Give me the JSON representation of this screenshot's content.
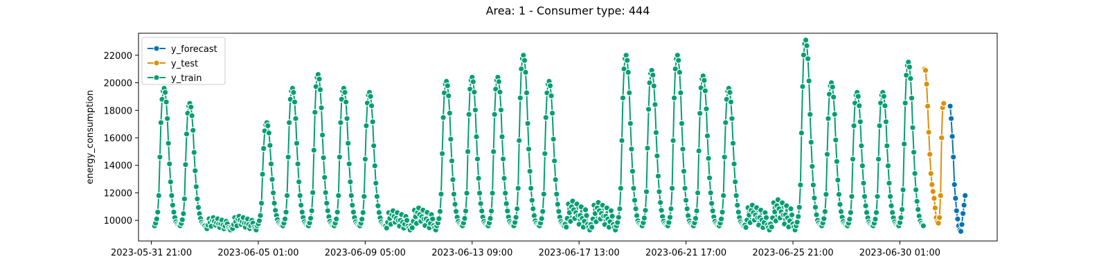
{
  "chart_data": {
    "type": "line",
    "title": "Area: 1 - Consumer type: 444",
    "xlabel": "",
    "ylabel": "energy_consumption",
    "xlim": [
      "2023-05-31 09:00",
      "2023-07-03 20:00"
    ],
    "ylim": [
      8500,
      23600
    ],
    "x_ticks": [
      "2023-05-31 21:00",
      "2023-06-05 01:00",
      "2023-06-09 05:00",
      "2023-06-13 09:00",
      "2023-06-17 13:00",
      "2023-06-21 17:00",
      "2023-06-25 21:00",
      "2023-06-30 01:00"
    ],
    "y_ticks": [
      10000,
      12000,
      14000,
      16000,
      18000,
      20000,
      22000
    ],
    "grid": false,
    "legend_position": "top-left",
    "legend": [
      "y_forecast",
      "y_test",
      "y_train"
    ],
    "series": [
      {
        "name": "y_forecast",
        "color": "#0173b2",
        "marker": "circle",
        "start": "2023-07-02 00:00",
        "step_hours": 1,
        "values": [
          18300,
          17400,
          16100,
          14600,
          12600,
          11600,
          10700,
          10100,
          9600,
          9300,
          9200,
          9700,
          10500,
          11100,
          11800
        ]
      },
      {
        "name": "y_test",
        "color": "#de8f05",
        "marker": "circle",
        "start": "2023-07-01 00:00",
        "step_hours": 1,
        "values": [
          21000,
          20900,
          19900,
          18300,
          16400,
          14800,
          13400,
          12600,
          12100,
          11600,
          10900,
          10200,
          9900,
          9800,
          10200,
          11800,
          16000,
          18200,
          18500
        ]
      },
      {
        "name": "y_train",
        "color": "#029e73",
        "marker": "circle",
        "peaks": [
          {
            "day": "2023-06-01",
            "type": "weekday",
            "peak": 19600
          },
          {
            "day": "2023-06-02",
            "type": "weekday",
            "peak": 18500
          },
          {
            "day": "2023-06-03",
            "type": "weekend",
            "peak": 10200
          },
          {
            "day": "2023-06-04",
            "type": "weekend",
            "peak": 10300
          },
          {
            "day": "2023-06-05",
            "type": "weekday",
            "peak": 17100
          },
          {
            "day": "2023-06-06",
            "type": "weekday",
            "peak": 19600
          },
          {
            "day": "2023-06-07",
            "type": "weekday",
            "peak": 20600
          },
          {
            "day": "2023-06-08",
            "type": "weekday",
            "peak": 19600
          },
          {
            "day": "2023-06-09",
            "type": "weekday",
            "peak": 19300
          },
          {
            "day": "2023-06-10",
            "type": "weekend",
            "peak": 10700
          },
          {
            "day": "2023-06-11",
            "type": "weekend",
            "peak": 10900
          },
          {
            "day": "2023-06-12",
            "type": "weekday",
            "peak": 20100
          },
          {
            "day": "2023-06-13",
            "type": "weekday",
            "peak": 20400
          },
          {
            "day": "2023-06-14",
            "type": "weekday",
            "peak": 20400
          },
          {
            "day": "2023-06-15",
            "type": "weekday",
            "peak": 22000
          },
          {
            "day": "2023-06-16",
            "type": "weekday",
            "peak": 20100
          },
          {
            "day": "2023-06-17",
            "type": "weekend",
            "peak": 11400
          },
          {
            "day": "2023-06-18",
            "type": "weekend",
            "peak": 11300
          },
          {
            "day": "2023-06-19",
            "type": "weekday",
            "peak": 22000
          },
          {
            "day": "2023-06-20",
            "type": "weekday",
            "peak": 20900
          },
          {
            "day": "2023-06-21",
            "type": "weekday",
            "peak": 22000
          },
          {
            "day": "2023-06-22",
            "type": "weekday",
            "peak": 20500
          },
          {
            "day": "2023-06-23",
            "type": "weekday",
            "peak": 19600
          },
          {
            "day": "2023-06-24",
            "type": "weekend",
            "peak": 11100
          },
          {
            "day": "2023-06-25",
            "type": "weekend",
            "peak": 11500
          },
          {
            "day": "2023-06-26",
            "type": "weekday",
            "peak": 23100
          },
          {
            "day": "2023-06-27",
            "type": "weekday",
            "peak": 20000
          },
          {
            "day": "2023-06-28",
            "type": "weekday",
            "peak": 19300
          },
          {
            "day": "2023-06-29",
            "type": "weekday",
            "peak": 19300
          },
          {
            "day": "2023-06-30",
            "type": "weekday",
            "peak": 21500
          }
        ]
      }
    ]
  }
}
